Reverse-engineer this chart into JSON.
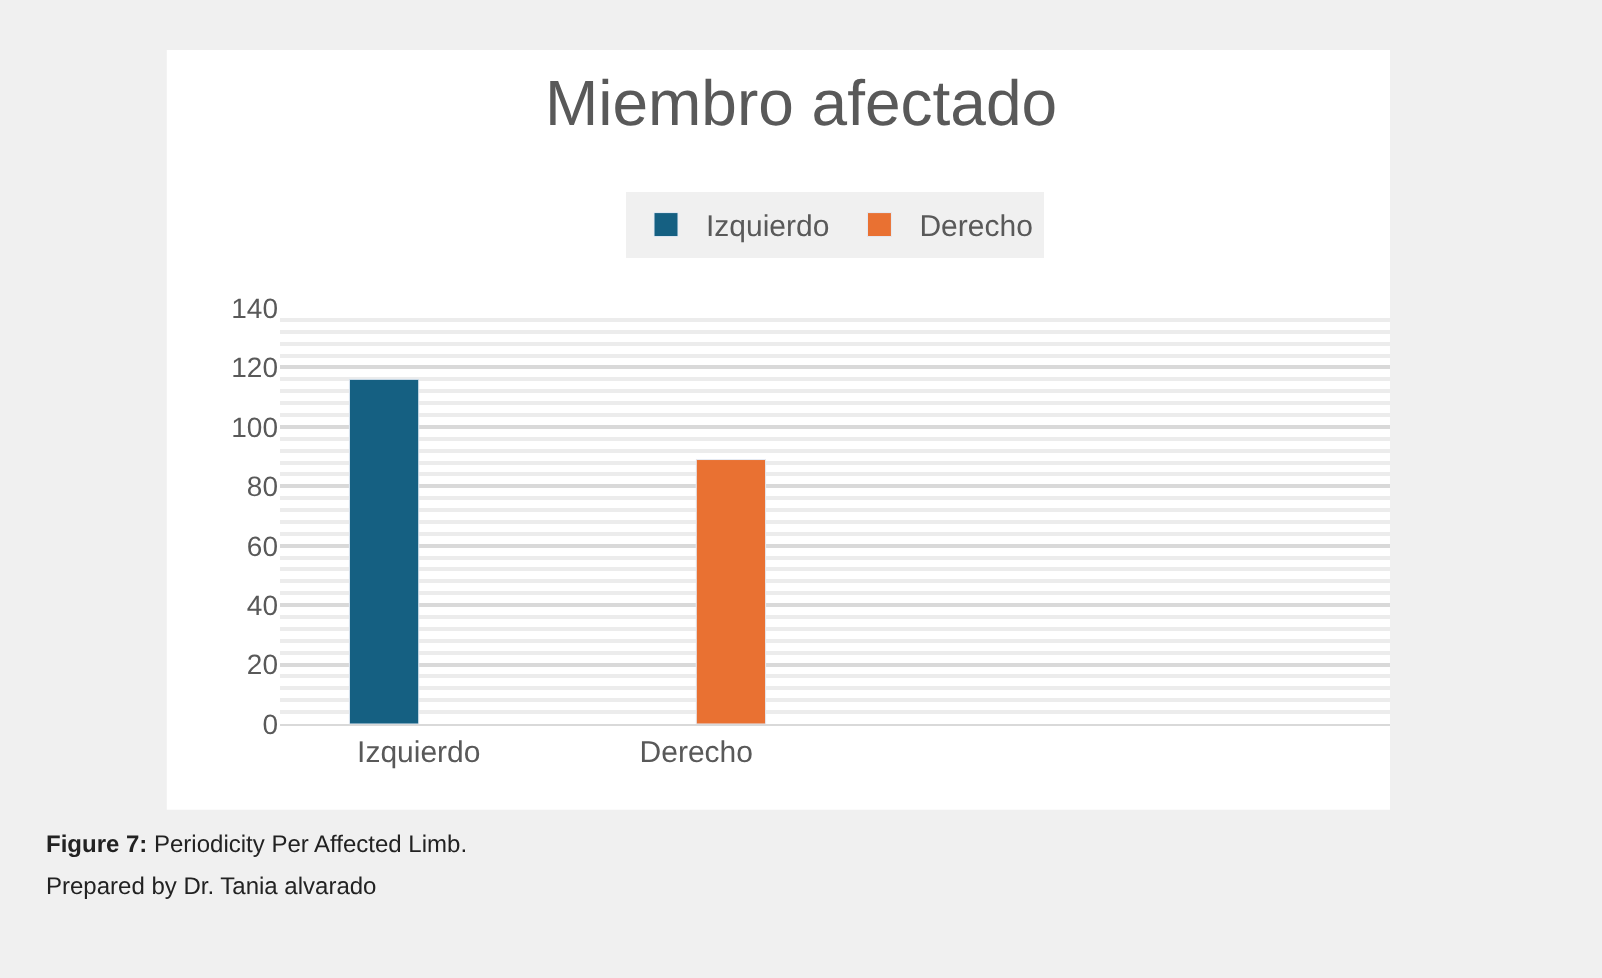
{
  "chart_data": {
    "type": "bar",
    "title": "Miembro afectado",
    "categories": [
      "Izquierdo",
      "Derecho",
      null,
      null
    ],
    "series": [
      {
        "name": "Izquierdo",
        "color": "#156082",
        "values": [
          116,
          null,
          null,
          null
        ]
      },
      {
        "name": "Derecho",
        "color": "#e97132",
        "values": [
          null,
          89,
          null,
          null
        ]
      }
    ],
    "ylim": [
      0,
      140
    ],
    "yticks": [
      0,
      20,
      40,
      60,
      80,
      100,
      120,
      140
    ],
    "grid": "y",
    "legend": "top",
    "annotations": [
      "Figure 7: Periodicity Per Affected Limb.",
      "Prepared by Dr. Tania alvarado"
    ]
  }
}
